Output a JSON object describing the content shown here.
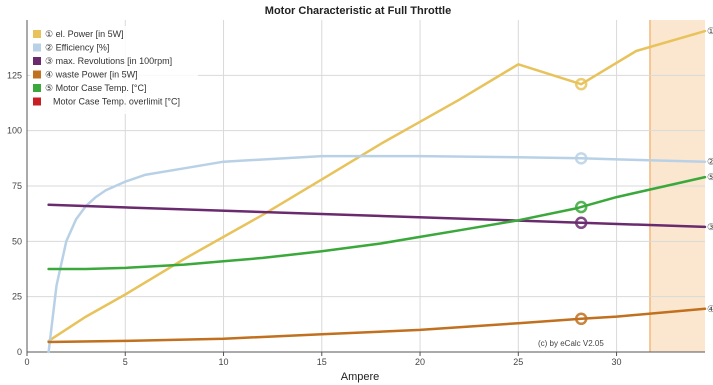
{
  "chart_data": {
    "type": "line",
    "title": "Motor Characteristic at Full Throttle",
    "xlabel": "Ampere",
    "ylabel": "",
    "xlim": [
      0,
      34.5
    ],
    "ylim": [
      0,
      150
    ],
    "x_ticks": [
      0,
      5,
      10,
      15,
      20,
      25,
      30
    ],
    "y_ticks": [
      0,
      25,
      50,
      75,
      100,
      125
    ],
    "grid": true,
    "legend_position": "top-left",
    "overlimit_region": [
      31.7,
      34.5
    ],
    "overlimit_color": "#fbe7cf",
    "marker_x": 28.2,
    "credit": "(c) by eCalc  V2.05",
    "series": [
      {
        "name": "① el. Power [in 5W]",
        "color": "#e8c35c",
        "marker_label": "①",
        "x": [
          1.1,
          3,
          5,
          8,
          10,
          12,
          15,
          18,
          20,
          22,
          25,
          28.2,
          31,
          34.5
        ],
        "y": [
          5,
          16,
          26,
          42,
          52,
          62,
          78,
          94,
          104,
          114,
          130,
          121,
          136,
          145
        ]
      },
      {
        "name": "② Efficiency [%]",
        "color": "#b9d1e6",
        "marker_label": "②",
        "x": [
          1.1,
          1.5,
          2,
          2.5,
          3,
          3.5,
          4,
          5,
          6,
          8,
          10,
          15,
          20,
          25,
          28.2,
          30,
          34.5
        ],
        "y": [
          0,
          30,
          50,
          60,
          66,
          70,
          73,
          77,
          80,
          83,
          86,
          88.5,
          88.5,
          88,
          87.5,
          87,
          86
        ]
      },
      {
        "name": "③ max. Revolutions [in 100rpm]",
        "color": "#6a2a6e",
        "marker_label": "③",
        "x": [
          1.1,
          34.5
        ],
        "y": [
          66.5,
          56.5
        ]
      },
      {
        "name": "④ waste Power [in 5W]",
        "color": "#c0701e",
        "marker_label": "④",
        "x": [
          1.1,
          5,
          10,
          15,
          20,
          25,
          28.2,
          30,
          34.5
        ],
        "y": [
          4.5,
          5,
          6,
          8,
          10,
          13,
          15,
          16,
          19.5
        ]
      },
      {
        "name": "⑤ Motor Case Temp. [°C]",
        "color": "#3aa83a",
        "marker_label": "⑤",
        "x": [
          1.1,
          3,
          5,
          8,
          10,
          12,
          15,
          18,
          20,
          22,
          25,
          28,
          30,
          34.5
        ],
        "y": [
          37.5,
          37.5,
          38,
          39.5,
          41,
          42.5,
          45.5,
          49,
          52,
          55,
          59.5,
          65,
          70,
          79
        ]
      },
      {
        "name": "Motor Case Temp. overlimit [°C]",
        "color": "#c81f24",
        "marker_label": "",
        "x": [],
        "y": []
      }
    ]
  }
}
